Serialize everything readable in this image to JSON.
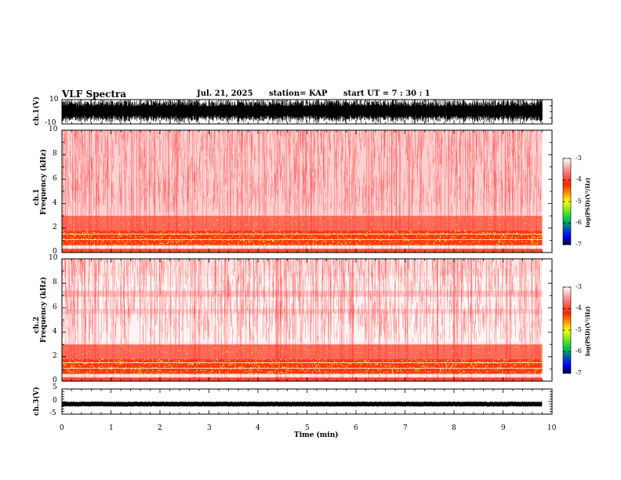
{
  "header": {
    "title": "VLF Spectra",
    "date": "Jul. 21, 2025",
    "station": "station= KAP",
    "start": "start  UT =   7 : 30 : 1"
  },
  "chart_data": [
    {
      "type": "line",
      "name": "ch1-waveform",
      "ylabel": "ch.1(V)",
      "ylim": [
        -10,
        10
      ],
      "yticks": [
        "10",
        "-10"
      ],
      "xlim": [
        0,
        10
      ],
      "description_values": "dense oscillating waveform spanning nearly full range to 9.8 min"
    },
    {
      "type": "heatmap",
      "name": "ch1-spectrogram",
      "ylabel": "ch.1\nFrequency (kHz)",
      "ylabel_line1": "ch.1",
      "ylabel_line2": "Frequency  (kHz)",
      "ylim": [
        0,
        10
      ],
      "yticks": [
        "0",
        "2",
        "4",
        "6",
        "8",
        "10"
      ],
      "xlim": [
        0,
        10
      ],
      "data_end_min": 9.8
    },
    {
      "type": "heatmap",
      "name": "ch2-spectrogram",
      "ylabel_line1": "ch.2",
      "ylabel_line2": "Frequency  (kHz)",
      "ylim": [
        0,
        10
      ],
      "yticks": [
        "0",
        "2",
        "4",
        "6",
        "8",
        "10"
      ],
      "xlim": [
        0,
        10
      ],
      "data_end_min": 9.8
    },
    {
      "type": "line",
      "name": "ch3-waveform",
      "ylabel": "ch.3(V)",
      "ylim": [
        -5,
        5
      ],
      "yticks": [
        "5",
        "0",
        "-5"
      ],
      "xlim": [
        0,
        10
      ],
      "xlabel": "Time  (min)",
      "xticks": [
        "0",
        "1",
        "2",
        "3",
        "4",
        "5",
        "6",
        "7",
        "8",
        "9",
        "10"
      ]
    }
  ],
  "colorbar": {
    "ticks": [
      "-3",
      "-4",
      "-5",
      "-6",
      "-7"
    ],
    "label": "log(PSD)(V²/Hz)",
    "range": [
      -7,
      -3
    ]
  }
}
